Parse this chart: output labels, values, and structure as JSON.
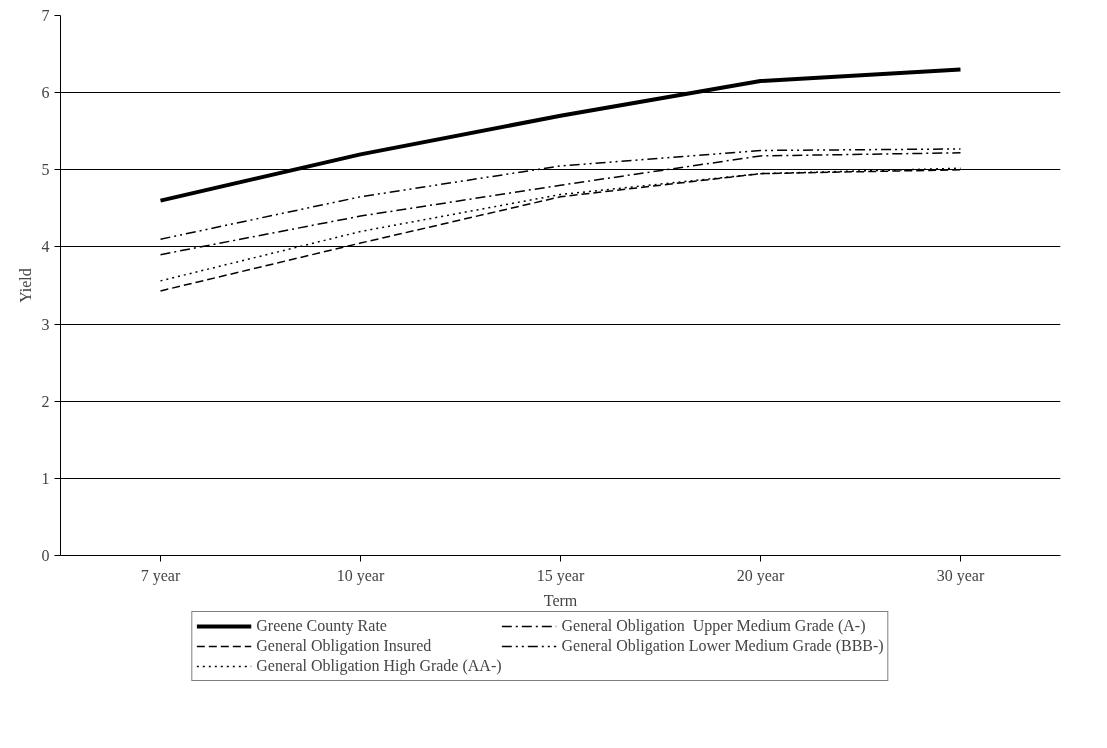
{
  "chart_data": {
    "type": "line",
    "xlabel": "Term",
    "ylabel": "Yield",
    "categories": [
      "7 year",
      "10 year",
      "15 year",
      "20 year",
      "30 year"
    ],
    "ylim": [
      0,
      7
    ],
    "yticks": [
      0,
      1,
      2,
      3,
      4,
      5,
      6,
      7
    ],
    "grid": "y",
    "legend": "bottom",
    "marker": "none",
    "series": [
      {
        "name": "Greene County Rate",
        "color": "#000000",
        "line_style": "solid",
        "values": [
          4.6,
          5.2,
          5.7,
          6.15,
          6.3
        ]
      },
      {
        "name": "General Obligation Insured",
        "color": "#000000",
        "line_style": "dashed",
        "values": [
          3.43,
          4.05,
          4.65,
          4.95,
          5.0
        ]
      },
      {
        "name": "General Obligation High Grade (AA-)",
        "color": "#000000",
        "line_style": "dotted",
        "values": [
          3.56,
          4.2,
          4.68,
          4.95,
          5.02
        ]
      },
      {
        "name": "General Obligation  Upper Medium Grade (A-)",
        "color": "#000000",
        "line_style": "dashdot",
        "values": [
          3.9,
          4.4,
          4.8,
          5.18,
          5.22
        ]
      },
      {
        "name": "General Obligation Lower Medium Grade (BBB-)",
        "color": "#000000",
        "line_style": "dashdotdot",
        "values": [
          4.1,
          4.65,
          5.05,
          5.25,
          5.27
        ]
      }
    ]
  }
}
